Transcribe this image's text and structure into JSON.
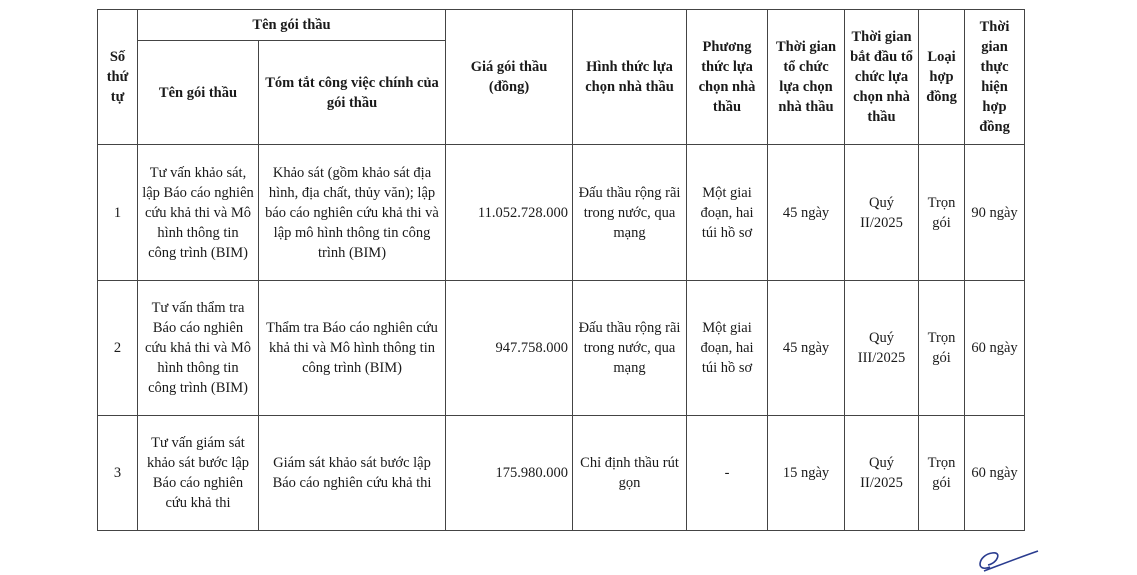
{
  "headers": {
    "stt": "Số thứ tự",
    "group": "Tên gói thầu",
    "name": "Tên gói thầu",
    "summary": "Tóm tắt công việc chính của gói thầu",
    "price": "Giá gói thầu (đồng)",
    "form": "Hình thức lựa chọn nhà thầu",
    "method": "Phương thức lựa chọn nhà thầu",
    "duration": "Thời gian tổ chức lựa chọn nhà thầu",
    "start": "Thời gian bắt đầu tổ chức lựa chọn nhà thầu",
    "contract_type": "Loại hợp đồng",
    "contract_duration": "Thời gian thực hiện hợp đồng"
  },
  "rows": [
    {
      "stt": "1",
      "name": "Tư vấn khảo sát, lập Báo cáo nghiên cứu khả thi và Mô hình thông tin công trình (BIM)",
      "summary": "Khảo sát (gồm khảo sát địa hình, địa chất, thủy văn); lập báo cáo nghiên cứu khả thi và lập mô hình thông tin công trình (BIM)",
      "price": "11.052.728.000",
      "form": "Đấu thầu rộng rãi trong nước, qua mạng",
      "method": "Một giai đoạn, hai túi hồ sơ",
      "duration": "45 ngày",
      "start": "Quý II/2025",
      "contract_type": "Trọn gói",
      "contract_duration": "90 ngày"
    },
    {
      "stt": "2",
      "name": "Tư vấn thẩm tra Báo cáo nghiên cứu khả thi và Mô hình thông tin công trình (BIM)",
      "summary": "Thẩm tra Báo cáo nghiên cứu khả thi và Mô hình thông tin công trình (BIM)",
      "price": "947.758.000",
      "form": "Đấu thầu rộng rãi trong nước, qua mạng",
      "method": "Một giai đoạn, hai túi hồ sơ",
      "duration": "45 ngày",
      "start": "Quý III/2025",
      "contract_type": "Trọn gói",
      "contract_duration": "60 ngày"
    },
    {
      "stt": "3",
      "name": "Tư vấn giám sát khảo sát bước lập Báo cáo nghiên cứu khả thi",
      "summary": "Giám sát khảo sát bước lập Báo cáo nghiên cứu khả thi",
      "price": "175.980.000",
      "form": "Chỉ định thầu rút gọn",
      "method": "-",
      "duration": "15 ngày",
      "start": "Quý II/2025",
      "contract_type": "Trọn gói",
      "contract_duration": "60 ngày"
    }
  ]
}
